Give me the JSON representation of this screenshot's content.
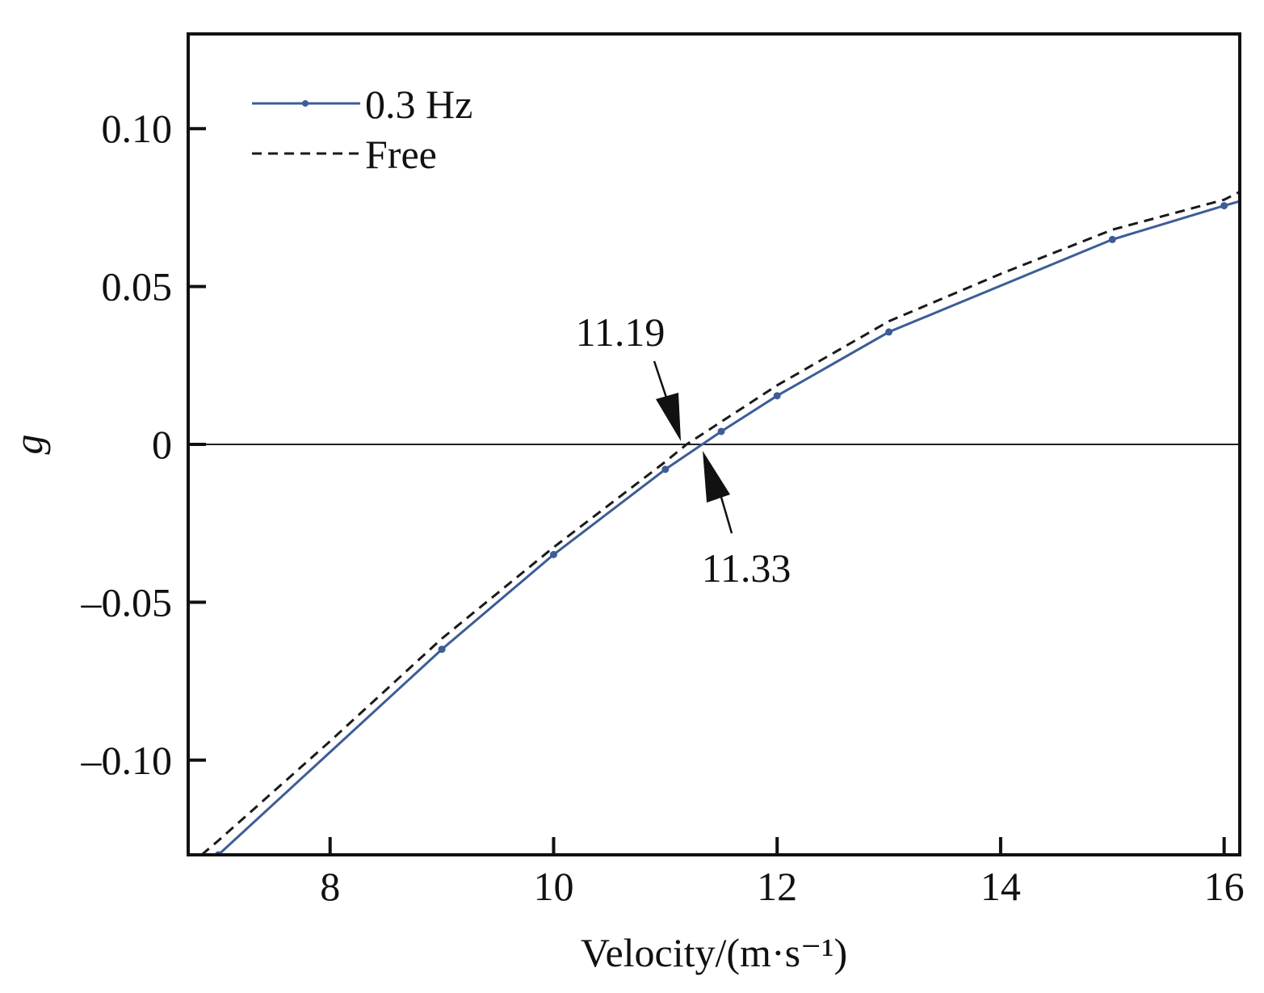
{
  "chart_data": {
    "type": "line",
    "title": "",
    "xlabel": "Velocity/(m·s⁻¹)",
    "ylabel": "g",
    "xlim": [
      6.73,
      16.14
    ],
    "ylim": [
      -0.13,
      0.13
    ],
    "xticks": [
      8,
      10,
      12,
      14,
      16
    ],
    "xtick_labels": [
      "8",
      "10",
      "12",
      "14",
      "16"
    ],
    "yticks": [
      0.1,
      0.05,
      0,
      -0.05,
      -0.1
    ],
    "ytick_labels": [
      "0.10",
      "0.05",
      "0",
      "–0.05",
      "–0.10"
    ],
    "grid": false,
    "legend_position": "top-left",
    "zero_line": true,
    "series": [
      {
        "name": "0.3 Hz",
        "color": "#3c5d96",
        "style": "solid-markers",
        "x": [
          7,
          9,
          10,
          11,
          11.5,
          12,
          13,
          15,
          16,
          16.14
        ],
        "y": [
          -0.13,
          -0.0649,
          -0.0349,
          -0.0079,
          0.0041,
          0.0154,
          0.0356,
          0.0649,
          0.0756,
          0.077
        ],
        "markers": [
          true,
          true,
          true,
          true,
          true,
          true,
          true,
          true,
          true,
          false
        ]
      },
      {
        "name": "Free",
        "color": "#1a1a1a",
        "style": "dashed",
        "x": [
          6.85,
          7,
          8,
          9,
          10,
          11,
          11.19,
          12,
          13,
          14,
          15,
          16,
          16.14
        ],
        "y": [
          -0.13,
          -0.1255,
          -0.094,
          -0.0615,
          -0.0326,
          -0.0055,
          0,
          0.0187,
          0.039,
          0.054,
          0.068,
          0.0775,
          0.08
        ]
      }
    ],
    "annotations": [
      {
        "text": "11.19",
        "x": 11.19,
        "y": 0,
        "direction": "from-above"
      },
      {
        "text": "11.33",
        "x": 11.33,
        "y": 0,
        "direction": "from-below"
      }
    ]
  }
}
